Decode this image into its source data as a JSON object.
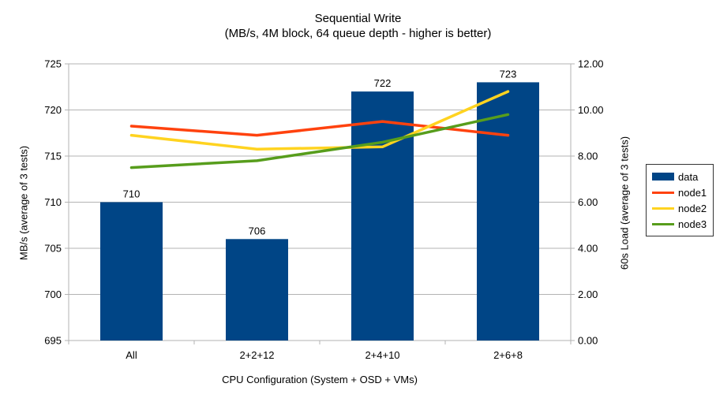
{
  "chart_data": {
    "type": "combo_bar_line",
    "title": "Sequential Write",
    "subtitle": "(MB/s, 4M block, 64 queue depth - higher is better)",
    "xlabel": "CPU Configuration (System + OSD + VMs)",
    "categories": [
      "All",
      "2+2+12",
      "2+4+10",
      "2+6+8"
    ],
    "series": [
      {
        "name": "data",
        "type": "bar",
        "axis": "left",
        "color": "#004586",
        "values": [
          710,
          706,
          722,
          723
        ],
        "data_labels": [
          "710",
          "706",
          "722",
          "723"
        ]
      },
      {
        "name": "node1",
        "type": "line",
        "axis": "right",
        "color": "#ff420e",
        "values": [
          9.3,
          8.9,
          9.5,
          8.9
        ]
      },
      {
        "name": "node2",
        "type": "line",
        "axis": "right",
        "color": "#ffd320",
        "values": [
          8.9,
          8.3,
          8.4,
          10.8
        ]
      },
      {
        "name": "node3",
        "type": "line",
        "axis": "right",
        "color": "#579d1c",
        "values": [
          7.5,
          7.8,
          8.6,
          9.8
        ]
      }
    ],
    "left_axis": {
      "label": "MB/s (average of 3 tests)",
      "min": 695,
      "max": 725,
      "step": 5,
      "tick_labels": [
        "695",
        "700",
        "705",
        "710",
        "715",
        "720",
        "725"
      ]
    },
    "right_axis": {
      "label": "60s Load (average of 3 tests)",
      "min": 0,
      "max": 12,
      "step": 2,
      "tick_labels": [
        "0.00",
        "2.00",
        "4.00",
        "6.00",
        "8.00",
        "10.00",
        "12.00"
      ]
    },
    "grid": true,
    "legend_position": "right",
    "legend_items": [
      "data",
      "node1",
      "node2",
      "node3"
    ],
    "colors": {
      "background": "#ffffff",
      "grid": "#b3b3b3",
      "axis": "#b3b3b3",
      "text": "#000000",
      "legend_border": "#333333"
    }
  }
}
